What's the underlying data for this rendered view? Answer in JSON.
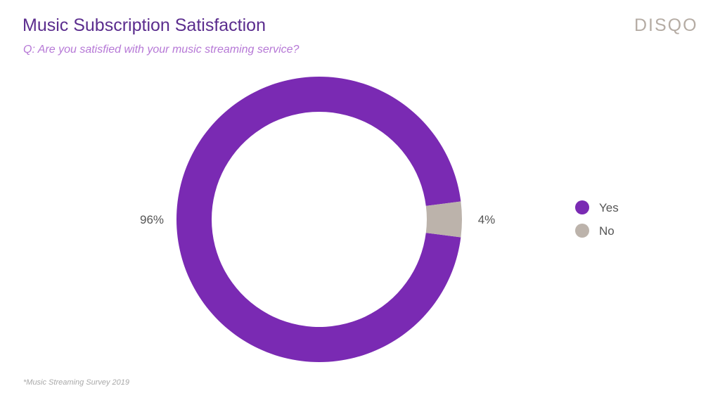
{
  "header": {
    "title": "Music Subscription Satisfaction",
    "subtitle": "Q: Are you satisfied with your music streaming service?",
    "brand": "DISQO"
  },
  "footnote": "*Music Streaming Survey 2019",
  "colors": {
    "title": "#5b2d8e",
    "subtitle": "#b678d6",
    "brand": "#b5aca4",
    "yes": "#7a2ab3",
    "no": "#bcb3ab"
  },
  "chart_data": {
    "type": "pie",
    "variant": "donut",
    "categories": [
      "Yes",
      "No"
    ],
    "values": [
      96,
      4
    ],
    "data_labels": [
      "96%",
      "4%"
    ],
    "colors": [
      "#7a2ab3",
      "#bcb3ab"
    ],
    "legend": {
      "placement": "right",
      "entries": [
        "Yes",
        "No"
      ]
    }
  }
}
